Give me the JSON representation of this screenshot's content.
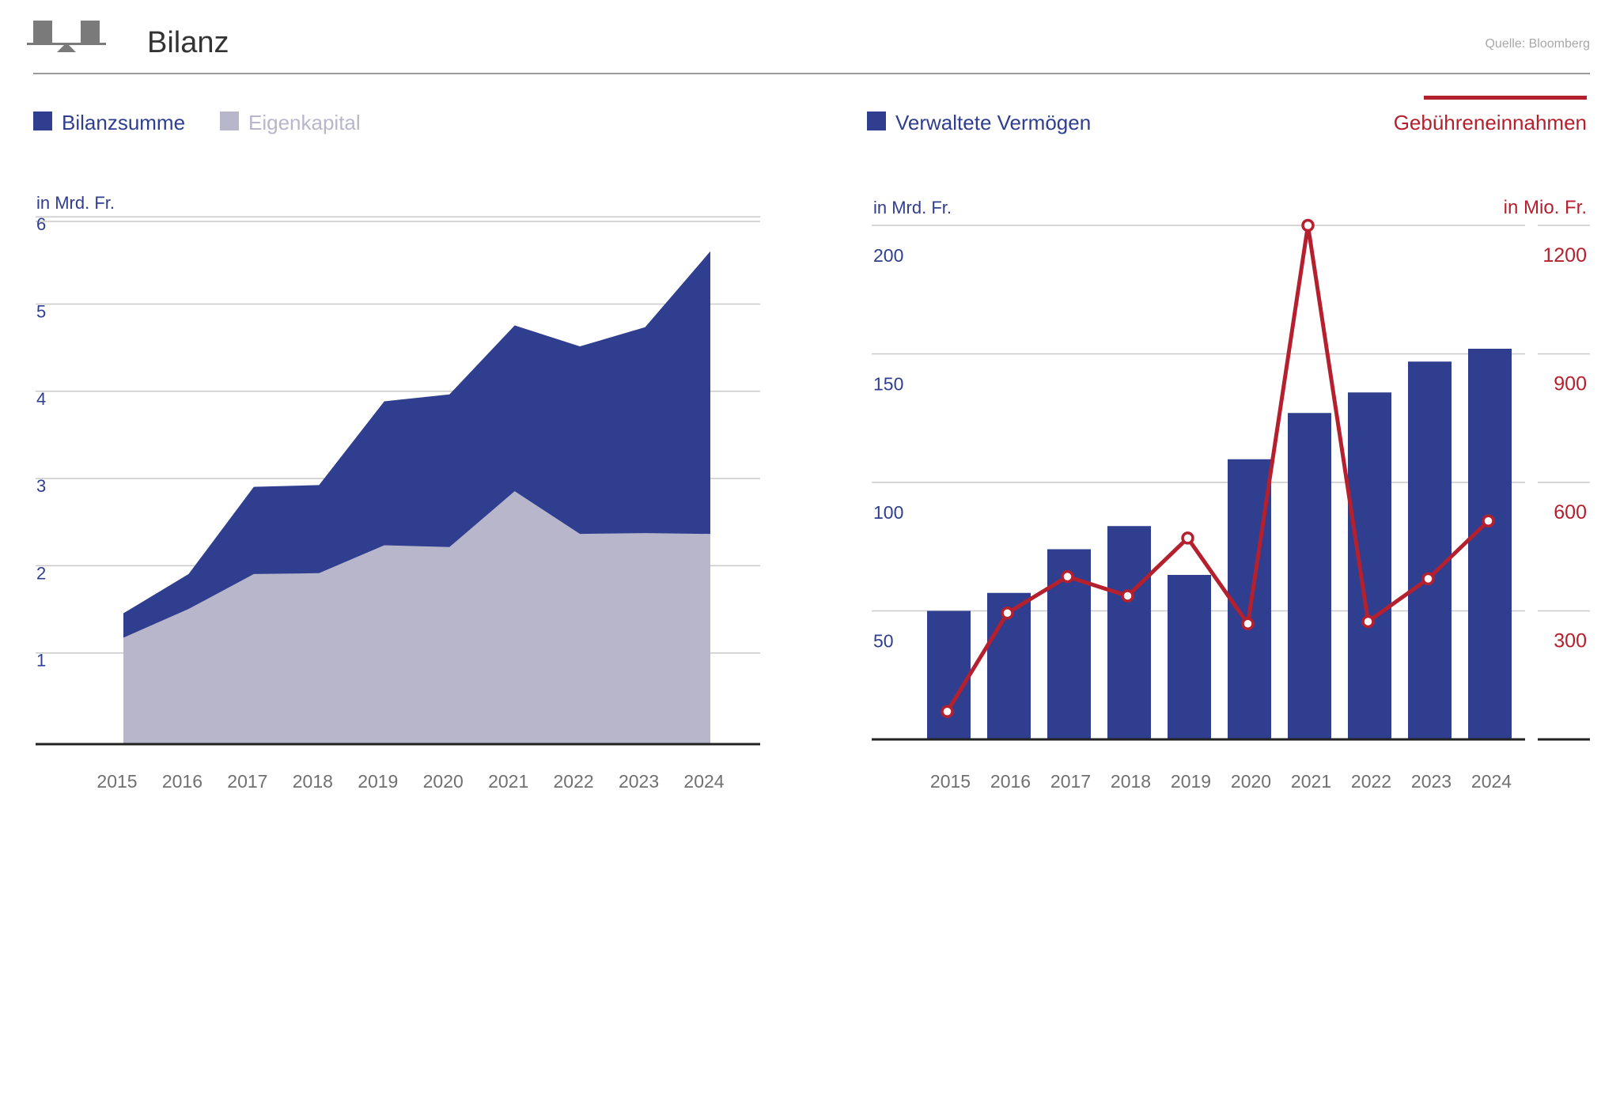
{
  "header": {
    "title": "Bilanz",
    "source": "Quelle: Bloomberg",
    "logo_icon": "balance-scale-icon"
  },
  "colors": {
    "navy": "#2f3e8e",
    "lilac": "#b8b6cb",
    "red": "#b5202e",
    "grid": "#c9c9c9",
    "axis": "#222222",
    "tick_gray": "#707070",
    "title": "#333333",
    "source": "#a8a8a8",
    "logo": "#7a7a7a"
  },
  "chart_data": [
    {
      "type": "area",
      "title": "Bilanz",
      "legend": [
        {
          "label": "Bilanzsumme",
          "color": "#2f3e8e"
        },
        {
          "label": "Eigenkapital",
          "color": "#b8b6cb"
        }
      ],
      "ylabel": "in Mrd. Fr.",
      "x": [
        "2015",
        "2016",
        "2017",
        "2018",
        "2019",
        "2020",
        "2021",
        "2022",
        "2023",
        "2024"
      ],
      "series": [
        {
          "name": "Bilanzsumme",
          "values": [
            1.5,
            1.95,
            2.95,
            2.97,
            3.93,
            4.01,
            4.8,
            4.56,
            4.78,
            5.65
          ]
        },
        {
          "name": "Eigenkapital",
          "values": [
            1.22,
            1.55,
            1.95,
            1.96,
            2.28,
            2.26,
            2.9,
            2.41,
            2.42,
            2.41
          ]
        }
      ],
      "ylim": [
        0,
        6
      ],
      "yticks": [
        1,
        2,
        3,
        4,
        5,
        6
      ],
      "grid": true
    },
    {
      "type": "bar+line",
      "legend": [
        {
          "label": "Verwaltete Vermögen",
          "color": "#2f3e8e"
        },
        {
          "label": "Gebühreneinnahmen",
          "color": "#b5202e"
        }
      ],
      "ylabel_left": "in Mrd. Fr.",
      "ylabel_right": "in Mio. Fr.",
      "x": [
        "2015",
        "2016",
        "2017",
        "2018",
        "2019",
        "2020",
        "2021",
        "2022",
        "2023",
        "2024"
      ],
      "bars": {
        "name": "Verwaltete Vermögen",
        "values": [
          50,
          57,
          74,
          83,
          64,
          109,
          127,
          135,
          147,
          152
        ]
      },
      "line": {
        "name": "Gebühreneinnahmen",
        "values": [
          65,
          295,
          380,
          335,
          470,
          270,
          1200,
          275,
          375,
          510
        ]
      },
      "ylim_left": [
        0,
        200
      ],
      "yticks_left": [
        50,
        100,
        150,
        200
      ],
      "ylim_right": [
        0,
        1200
      ],
      "yticks_right": [
        300,
        600,
        900,
        1200
      ],
      "grid": true
    }
  ]
}
